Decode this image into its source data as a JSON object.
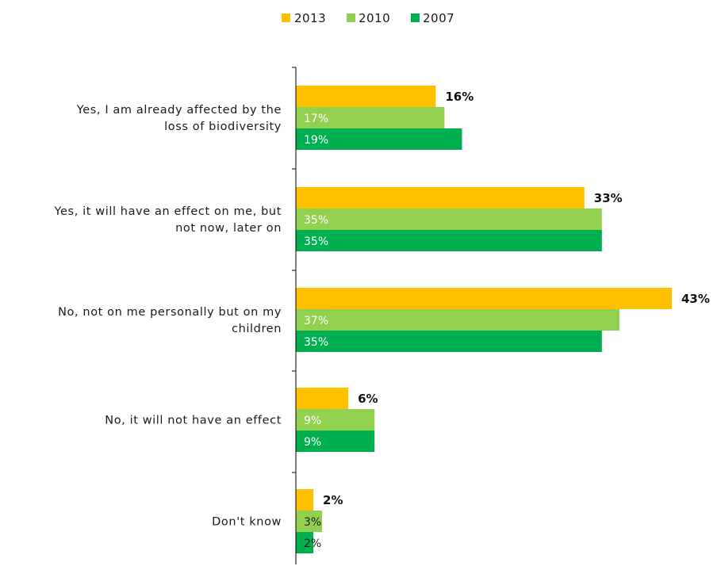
{
  "chart_data": {
    "type": "bar",
    "orientation": "horizontal",
    "categories": [
      [
        "Yes, I am already affected by the",
        "loss of biodiversity"
      ],
      [
        "Yes, it will have an effect on me, but",
        "not now, later on"
      ],
      [
        "No, not on me personally but on my",
        "children"
      ],
      [
        "No, it will not have an effect"
      ],
      [
        "Don't know"
      ]
    ],
    "series": [
      {
        "name": "2013",
        "color": "#FFC000",
        "values": [
          16,
          33,
          43,
          6,
          2
        ],
        "labels": [
          "16%",
          "33%",
          "43%",
          "6%",
          "2%"
        ]
      },
      {
        "name": "2010",
        "color": "#92D050",
        "values": [
          17,
          35,
          37,
          9,
          3
        ],
        "labels": [
          "17%",
          "35%",
          "37%",
          "9%",
          "3%"
        ]
      },
      {
        "name": "2007",
        "color": "#00B050",
        "values": [
          19,
          35,
          35,
          9,
          2
        ],
        "labels": [
          "19%",
          "35%",
          "35%",
          "9%",
          "2%"
        ]
      }
    ],
    "xlim": [
      0,
      43
    ],
    "grid": false,
    "legend_position": "top-center"
  }
}
